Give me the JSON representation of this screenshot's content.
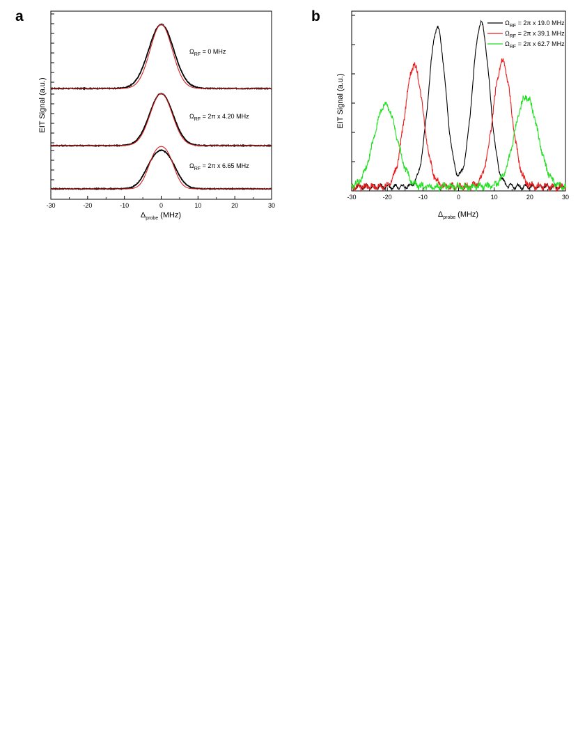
{
  "chart_data": [
    {
      "panel": "a",
      "type": "line",
      "xlabel": {
        "symbol": "Δ",
        "subscript": "probe",
        "unit": "(MHz)"
      },
      "ylabel": "EIT Signal (a.u.)",
      "xlim": [
        -30,
        30
      ],
      "xticks": [
        -30,
        -20,
        -10,
        0,
        10,
        20,
        30
      ],
      "grid": false,
      "series": [
        {
          "annotation": {
            "symbol": "Ω",
            "subscript": "RF",
            "rest": " = 0 MHz"
          },
          "baseline": 0.0,
          "height": 1.0,
          "data": {
            "color": "#000000",
            "peaks": [
              {
                "center": 0,
                "width": 3.4,
                "amp": 1.0
              }
            ]
          },
          "fit": {
            "color": "#d42020",
            "peaks": [
              {
                "center": 0,
                "width": 3.0,
                "amp": 1.0
              }
            ]
          }
        },
        {
          "annotation": {
            "symbol": "Ω",
            "subscript": "RF",
            "rest": " = 2π x 4.20  MHz"
          },
          "baseline": 0.0,
          "height": 0.86,
          "data": {
            "color": "#000000",
            "peaks": [
              {
                "center": -1.0,
                "width": 3.0,
                "amp": 0.62
              },
              {
                "center": 1.0,
                "width": 3.0,
                "amp": 0.62
              }
            ]
          },
          "fit": {
            "color": "#d42020",
            "peaks": [
              {
                "center": -1.0,
                "width": 2.8,
                "amp": 0.62
              },
              {
                "center": 1.0,
                "width": 2.8,
                "amp": 0.62
              }
            ]
          }
        },
        {
          "annotation": {
            "symbol": "Ω",
            "subscript": "RF",
            "rest": " = 2π x 6.65  MHz"
          },
          "baseline": 0.0,
          "height": 0.65,
          "data": {
            "color": "#000000",
            "peaks": [
              {
                "center": -1.9,
                "width": 2.6,
                "amp": 0.58
              },
              {
                "center": 1.9,
                "width": 2.6,
                "amp": 0.58
              }
            ]
          },
          "fit": {
            "color": "#d42020",
            "peaks": [
              {
                "center": -1.7,
                "width": 2.1,
                "amp": 0.66
              },
              {
                "center": 1.7,
                "width": 2.1,
                "amp": 0.66
              }
            ]
          }
        }
      ]
    },
    {
      "panel": "b",
      "type": "line",
      "xlabel": {
        "symbol": "Δ",
        "subscript": "probe",
        "unit": "(MHz)"
      },
      "ylabel": "EIT Signal (a.u.)",
      "xlim": [
        -30,
        30
      ],
      "ylim": [
        0,
        1.0
      ],
      "xticks": [
        -30,
        -20,
        -10,
        0,
        10,
        20,
        30
      ],
      "legend_position": "top-right",
      "grid": false,
      "series": [
        {
          "name": {
            "symbol": "Ω",
            "subscript": "RF",
            "rest": " = 2π x 19.0 MHz"
          },
          "color": "#000000",
          "peaks": [
            {
              "center": -6.0,
              "amp": 0.97,
              "width": 2.4
            },
            {
              "center": 6.3,
              "amp": 1.0,
              "width": 2.4
            }
          ]
        },
        {
          "name": {
            "symbol": "Ω",
            "subscript": "RF",
            "rest": " = 2π x 39.1 MHz"
          },
          "color": "#e81c1c",
          "peaks": [
            {
              "center": -12.5,
              "amp": 0.74,
              "width": 2.6
            },
            {
              "center": 12.3,
              "amp": 0.76,
              "width": 2.6
            }
          ]
        },
        {
          "name": {
            "symbol": "Ω",
            "subscript": "RF",
            "rest": " = 2π x 62.7 MHz"
          },
          "color": "#22e022",
          "peaks": [
            {
              "center": -20.5,
              "amp": 0.5,
              "width": 3.2
            },
            {
              "center": 19.0,
              "amp": 0.55,
              "width": 3.2
            }
          ]
        }
      ]
    }
  ]
}
